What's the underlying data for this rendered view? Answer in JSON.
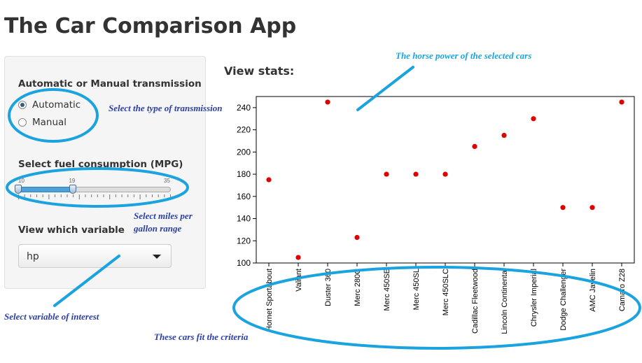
{
  "app": {
    "title": "The Car Comparison App"
  },
  "sidebar": {
    "transmission": {
      "label": "Automatic or Manual transmission",
      "options": [
        {
          "label": "Automatic",
          "selected": true
        },
        {
          "label": "Manual",
          "selected": false
        }
      ]
    },
    "mpg": {
      "label": "Select fuel consumption (MPG)",
      "min": 10,
      "max": 35,
      "range": [
        10,
        19
      ],
      "min_label": "10",
      "max_label": "35",
      "value_label": "19"
    },
    "variable": {
      "label": "View which variable",
      "selected": "hp"
    }
  },
  "main": {
    "heading": "View stats:"
  },
  "annotations": {
    "transmission": "Select the type of transmission",
    "mpg": "Select miles per gallon range",
    "variable": "Select variable of interest",
    "horsepower": "The horse power of the selected cars",
    "cars": "These cars fit the criteria"
  },
  "colors": {
    "annotation_line": "#1aa3df",
    "annotation_text_blue": "#2b3ea8",
    "annotation_text_cyan": "#1aa3df",
    "point": "#e00000",
    "slider": "#4ea1d8"
  },
  "chart_data": {
    "type": "scatter",
    "categories": [
      "Hornet Sportabout",
      "Valiant",
      "Duster 360",
      "Merc 280C",
      "Merc 450SE",
      "Merc 450SL",
      "Merc 450SLC",
      "Cadillac Fleetwood",
      "Lincoln Continental",
      "Chrysler Imperial",
      "Dodge Challenger",
      "AMC Javelin",
      "Camaro Z28"
    ],
    "values": [
      175,
      105,
      245,
      123,
      180,
      180,
      180,
      205,
      215,
      230,
      150,
      150,
      245
    ],
    "yticks": [
      100,
      120,
      140,
      160,
      180,
      200,
      220,
      240
    ],
    "ylim": [
      100,
      250
    ],
    "grid": false
  }
}
